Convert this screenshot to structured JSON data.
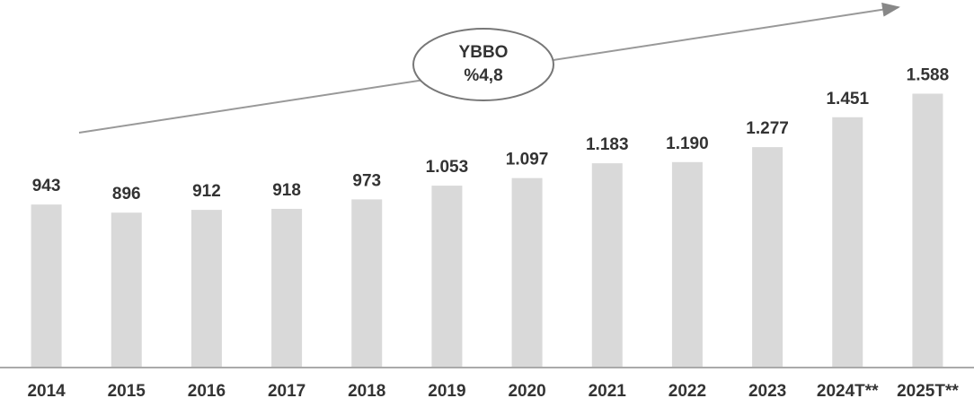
{
  "chart_data": {
    "type": "bar",
    "annotations": [
      "YBBO",
      "%4,8"
    ],
    "categories": [
      "2014",
      "2015",
      "2016",
      "2017",
      "2018",
      "2019",
      "2020",
      "2021",
      "2022",
      "2023",
      "2024T**",
      "2025T**"
    ],
    "values": [
      943,
      896,
      912,
      918,
      973,
      1053,
      1097,
      1183,
      1190,
      1277,
      1451,
      1588
    ],
    "value_labels": [
      "943",
      "896",
      "912",
      "918",
      "973",
      "1.053",
      "1.097",
      "1.183",
      "1.190",
      "1.277",
      "1.451",
      "1.588"
    ],
    "color": "#d9d9d9",
    "ylim": [
      0,
      1700
    ]
  }
}
